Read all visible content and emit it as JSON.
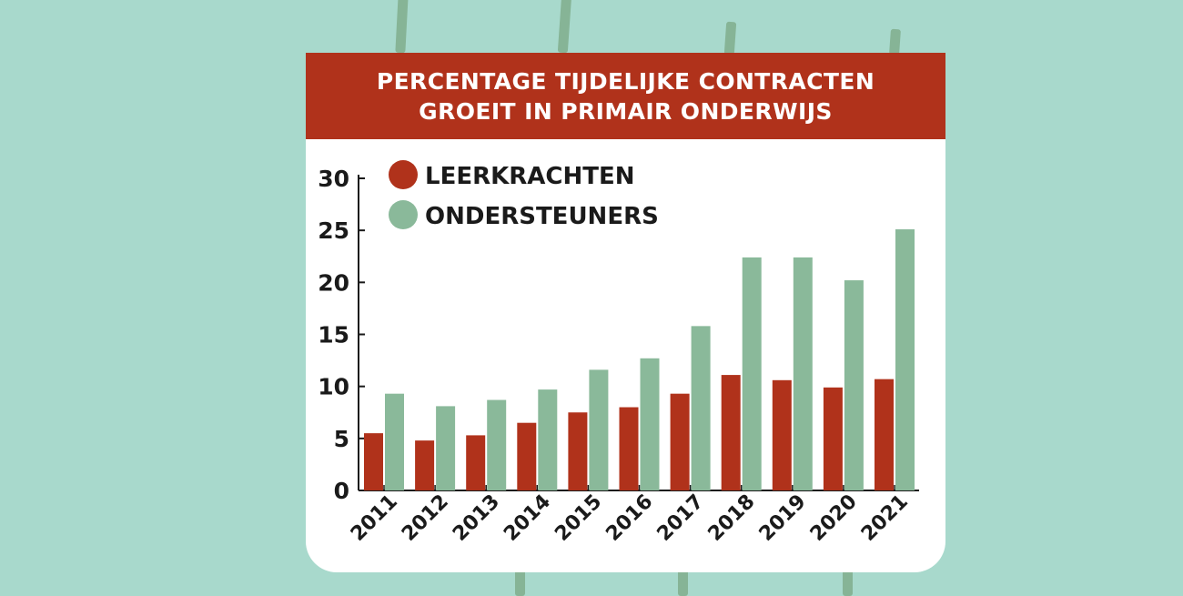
{
  "colors": {
    "background": "#a8d9cc",
    "card": "#ffffff",
    "banner": "#b0321b",
    "leerkrachten": "#b0321b",
    "ondersteuners": "#8ab99a",
    "text": "#1a1a1a"
  },
  "chart_data": {
    "type": "bar",
    "title": "PERCENTAGE TIJDELIJKE CONTRACTEN GROEIT IN PRIMAIR ONDERWIJS",
    "categories": [
      "2011",
      "2012",
      "2013",
      "2014",
      "2015",
      "2016",
      "2017",
      "2018",
      "2019",
      "2020",
      "2021"
    ],
    "series": [
      {
        "name": "LEERKRACHTEN",
        "color": "#b0321b",
        "values": [
          5.5,
          4.8,
          5.3,
          6.5,
          7.5,
          8.0,
          9.3,
          11.1,
          10.6,
          9.9,
          10.7
        ]
      },
      {
        "name": "ONDERSTEUNERS",
        "color": "#8ab99a",
        "values": [
          9.3,
          8.1,
          8.7,
          9.7,
          11.6,
          12.7,
          15.8,
          22.4,
          22.4,
          20.2,
          25.1
        ]
      }
    ],
    "ylim": [
      0,
      30
    ],
    "yticks": [
      "0",
      "5",
      "10",
      "15",
      "20",
      "25",
      "30"
    ],
    "grid": false,
    "legend": "top-left"
  }
}
